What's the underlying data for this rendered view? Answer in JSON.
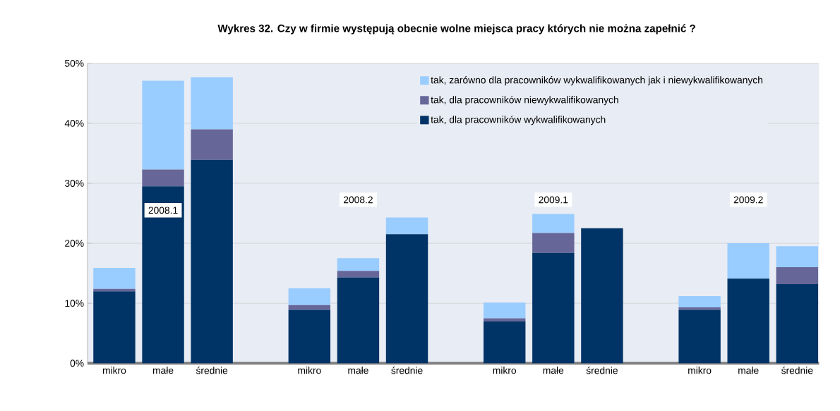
{
  "chart_data": {
    "type": "bar",
    "title": "Wykres 32. Czy w firmie występują obecnie wolne miejsca pracy których nie można zapełnić ?",
    "stacked": true,
    "categories": [
      "mikro",
      "małe",
      "średnie",
      null,
      "mikro",
      "małe",
      "średnie",
      null,
      "mikro",
      "małe",
      "średnie",
      null,
      "mikro",
      "małe",
      "średnie"
    ],
    "series": [
      {
        "name": "tak, dla pracowników wykwalifikowanych",
        "color": "#003366",
        "values": [
          12.0,
          29.5,
          33.9,
          null,
          8.9,
          14.3,
          21.5,
          null,
          7.0,
          18.4,
          22.5,
          null,
          8.9,
          14.1,
          13.2
        ]
      },
      {
        "name": "tak, dla pracowników niewykwalifikowanych",
        "color": "#666699",
        "values": [
          0.4,
          2.8,
          5.1,
          null,
          0.8,
          1.1,
          0,
          null,
          0.5,
          3.3,
          0,
          null,
          0.4,
          0,
          2.8
        ]
      },
      {
        "name": "tak, zarówno dla pracowników wykwalifikowanych jak i niewykwalifikowanych",
        "color": "#99ccff",
        "values": [
          3.5,
          14.8,
          8.7,
          null,
          2.8,
          2.1,
          2.8,
          null,
          2.6,
          3.2,
          0,
          null,
          1.9,
          5.9,
          3.5
        ]
      }
    ],
    "ylim": [
      0,
      50
    ],
    "yticks": [
      {
        "value": 0,
        "label": "0%"
      },
      {
        "value": 10,
        "label": "10%"
      },
      {
        "value": 20,
        "label": "20%"
      },
      {
        "value": 30,
        "label": "30%"
      },
      {
        "value": 40,
        "label": "40%"
      },
      {
        "value": 50,
        "label": "50%"
      }
    ],
    "grid": "y",
    "legend": "top right",
    "annotations": [
      "2008.1",
      "2008.2",
      "2009.1",
      "2009.2"
    ]
  }
}
